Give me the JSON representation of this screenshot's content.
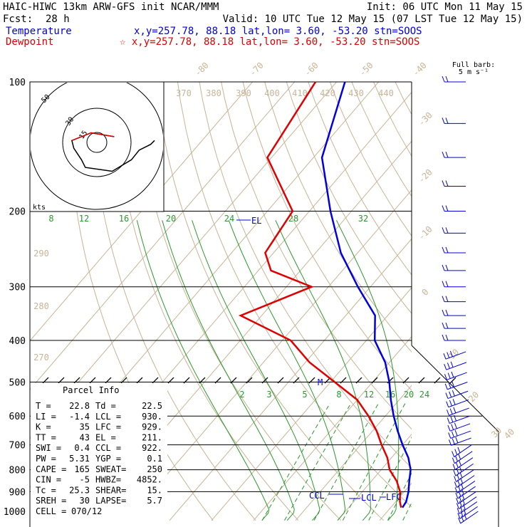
{
  "header": {
    "line1_left": "HAIC-HIWC 13km ARW-GFS init   NCAR/MMM",
    "line1_right": "Init: 06 UTC Mon 11 May 15",
    "fcst_label": "Fcst:",
    "fcst_value": "28 h",
    "valid": "Valid: 10 UTC Tue 12 May 15 (07 LST Tue 12 May 15)",
    "temp_label": "Temperature",
    "temp_info": "x,y=257.78, 88.18   lat,lon=  3.60, -53.20  stn=SOOS",
    "dew_label": "Dewpoint",
    "dew_info": "☆ x,y=257.78, 88.18   lat,lon=  3.60, -53.20  stn=SOOS"
  },
  "colors": {
    "temperature": "#0000e0",
    "dewpoint": "#e00000",
    "dry_adiabat": "#c8b496",
    "moist_adiabat": "#2a9a2a"
  },
  "chart_data": {
    "type": "skew-t",
    "pressure_labels": [
      "100",
      "200",
      "300",
      "400",
      "500",
      "600",
      "700",
      "800",
      "900",
      "1000"
    ],
    "temperature_labels_top": [
      "-80",
      "-70",
      "-60",
      "-50",
      "-40"
    ],
    "temperature_labels_right": [
      "-30",
      "-20",
      "-10",
      "0",
      "10",
      "20",
      "30",
      "40"
    ],
    "theta_labels": [
      "370",
      "380",
      "390",
      "400",
      "410",
      "420",
      "430",
      "440"
    ],
    "theta_labels_left": [
      "290",
      "280",
      "270"
    ],
    "mixing_ratio_upper": [
      "8",
      "12",
      "16",
      "20",
      "24",
      "28",
      "32"
    ],
    "mixing_ratio_lower": [
      "2",
      "3",
      "5",
      "8",
      "12",
      "16",
      "20",
      "24"
    ],
    "temperature_profile": {
      "pressure": [
        100,
        150,
        200,
        250,
        300,
        350,
        400,
        450,
        500,
        550,
        600,
        650,
        700,
        750,
        800,
        850,
        900,
        950,
        980
      ],
      "temperature_c": [
        -78,
        -68,
        -55,
        -44,
        -33,
        -23,
        -18,
        -11,
        -6,
        -2,
        2,
        6,
        10,
        14,
        17,
        19,
        21,
        22.5,
        22.8
      ]
    },
    "dewpoint_profile": {
      "pressure": [
        100,
        150,
        200,
        250,
        275,
        300,
        350,
        400,
        450,
        500,
        550,
        600,
        650,
        700,
        750,
        800,
        850,
        900,
        950,
        980
      ],
      "dewpoint_c": [
        -85,
        -81,
        -64,
        -62,
        -57,
        -44,
        -55,
        -38,
        -29,
        -19,
        -10,
        -4,
        1,
        5,
        9,
        12,
        16,
        19,
        21,
        22.5
      ]
    },
    "annotations": {
      "el": "EL",
      "m": "M",
      "ccl": "CCL",
      "lcl": "LCL",
      "lfc": "LFC"
    },
    "hodograph": {
      "ring_labels": [
        "15",
        "30",
        "50"
      ],
      "unit": "kts",
      "points": [
        [
          9,
          -3
        ],
        [
          -3,
          -5
        ],
        [
          -13,
          -1
        ],
        [
          -12,
          3
        ],
        [
          -8,
          9
        ],
        [
          -6,
          13
        ],
        [
          8,
          15
        ],
        [
          18,
          9
        ],
        [
          22,
          4
        ],
        [
          28,
          1
        ],
        [
          30,
          -1
        ]
      ]
    },
    "wind_barb_label_line1": "Full barb:",
    "wind_barb_label_line2": "5 m s⁻¹"
  },
  "parcel_info": {
    "title": "Parcel Info",
    "rows": [
      [
        "T    =",
        "22.8",
        "Td  =",
        "22.5"
      ],
      [
        "LI   =",
        "-1.4",
        "LCL =",
        "930."
      ],
      [
        "K    =",
        "35",
        "LFC =",
        "929."
      ],
      [
        "TT   =",
        "43",
        "EL  =",
        "211."
      ],
      [
        "SWI  =",
        "0.4",
        "CCL =",
        "922."
      ],
      [
        "PW   =",
        "5.31",
        "YGP =",
        "0.1"
      ],
      [
        "CAPE =",
        "165",
        "SWEAT=",
        "250"
      ],
      [
        "CIN  =",
        "-5",
        "HWBZ=",
        "4852."
      ],
      [
        "Tc   =",
        "25.3",
        "SHEAR=",
        "15."
      ],
      [
        "SREH =",
        "30",
        "LAPSE=",
        "5.7"
      ],
      [
        "CELL =",
        "070/12",
        "",
        ""
      ]
    ]
  }
}
